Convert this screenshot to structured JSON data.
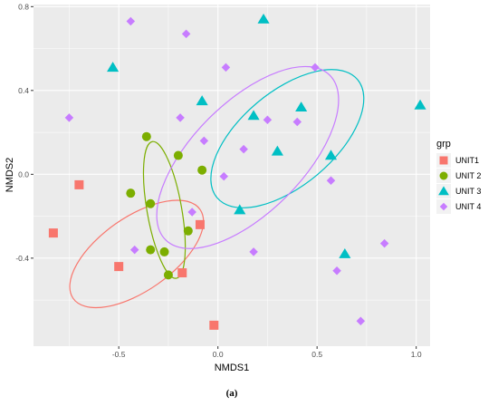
{
  "chart_data": {
    "type": "scatter",
    "title": "",
    "xlabel": "NMDS1",
    "ylabel": "NMDS2",
    "caption": "(a)",
    "xlim": [
      -0.93,
      1.07
    ],
    "ylim": [
      -0.82,
      0.81
    ],
    "x_ticks": [
      -0.5,
      0.0,
      0.5,
      1.0
    ],
    "x_tick_labels": [
      "-0.5",
      "0.0",
      "0.5",
      "1.0"
    ],
    "y_ticks": [
      -0.4,
      0.0,
      0.4,
      0.8
    ],
    "y_tick_labels": [
      "-0.4",
      "0.0",
      "0.4",
      "0.8"
    ],
    "grid": true,
    "panel_background": "#ebebeb",
    "legend": {
      "title": "grp",
      "placement": "right",
      "entries": [
        "UNIT1",
        "UNIT 2",
        "UNIT 3",
        "UNIT 4"
      ]
    },
    "series": [
      {
        "name": "UNIT1",
        "shape": "square",
        "color": "#f8766d",
        "points": [
          [
            -0.7,
            -0.05
          ],
          [
            -0.83,
            -0.28
          ],
          [
            -0.5,
            -0.44
          ],
          [
            -0.09,
            -0.24
          ],
          [
            -0.18,
            -0.47
          ],
          [
            -0.02,
            -0.72
          ]
        ],
        "ellipse": {
          "cx": -0.41,
          "cy": -0.38,
          "rx": 0.38,
          "ry": 0.18,
          "angle_deg": -35
        }
      },
      {
        "name": "UNIT 2",
        "shape": "circle",
        "color": "#7cae00",
        "points": [
          [
            -0.36,
            0.18
          ],
          [
            -0.2,
            0.09
          ],
          [
            -0.08,
            0.02
          ],
          [
            -0.44,
            -0.09
          ],
          [
            -0.34,
            -0.14
          ],
          [
            -0.34,
            -0.36
          ],
          [
            -0.27,
            -0.37
          ],
          [
            -0.15,
            -0.27
          ],
          [
            -0.25,
            -0.48
          ]
        ],
        "ellipse": {
          "cx": -0.27,
          "cy": -0.17,
          "rx": 0.34,
          "ry": 0.085,
          "angle_deg": 80
        }
      },
      {
        "name": "UNIT 3",
        "shape": "triangle",
        "color": "#00bfc4",
        "points": [
          [
            -0.53,
            0.51
          ],
          [
            0.23,
            0.74
          ],
          [
            -0.08,
            0.35
          ],
          [
            0.18,
            0.28
          ],
          [
            0.42,
            0.32
          ],
          [
            0.3,
            0.11
          ],
          [
            0.57,
            0.09
          ],
          [
            0.11,
            -0.17
          ],
          [
            0.64,
            -0.38
          ],
          [
            1.02,
            0.33
          ]
        ],
        "ellipse": {
          "cx": 0.35,
          "cy": 0.17,
          "rx": 0.45,
          "ry": 0.23,
          "angle_deg": -40
        }
      },
      {
        "name": "UNIT 4",
        "shape": "diamond",
        "color": "#c77cff",
        "points": [
          [
            -0.44,
            0.73
          ],
          [
            -0.16,
            0.67
          ],
          [
            -0.75,
            0.27
          ],
          [
            0.04,
            0.51
          ],
          [
            0.49,
            0.51
          ],
          [
            -0.19,
            0.27
          ],
          [
            0.25,
            0.26
          ],
          [
            0.4,
            0.25
          ],
          [
            -0.07,
            0.16
          ],
          [
            0.13,
            0.12
          ],
          [
            0.03,
            -0.01
          ],
          [
            0.57,
            -0.03
          ],
          [
            -0.13,
            -0.18
          ],
          [
            -0.42,
            -0.36
          ],
          [
            0.18,
            -0.37
          ],
          [
            0.84,
            -0.33
          ],
          [
            0.6,
            -0.46
          ],
          [
            0.72,
            -0.7
          ]
        ],
        "ellipse": {
          "cx": 0.15,
          "cy": 0.08,
          "rx": 0.57,
          "ry": 0.27,
          "angle_deg": -45
        }
      }
    ]
  }
}
